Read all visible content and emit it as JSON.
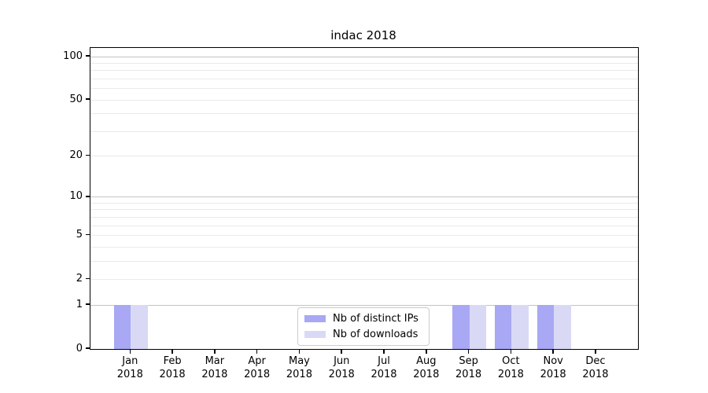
{
  "title": "indac 2018",
  "legend": {
    "items": [
      {
        "label": "Nb of distinct IPs",
        "color": "#a8a8f5"
      },
      {
        "label": "Nb of downloads",
        "color": "#d9d9f6"
      }
    ]
  },
  "chart_data": {
    "type": "bar",
    "title": "indac 2018",
    "categories": [
      "Jan 2018",
      "Feb 2018",
      "Mar 2018",
      "Apr 2018",
      "May 2018",
      "Jun 2018",
      "Jul 2018",
      "Aug 2018",
      "Sep 2018",
      "Oct 2018",
      "Nov 2018",
      "Dec 2018"
    ],
    "series": [
      {
        "name": "Nb of distinct IPs",
        "color": "#a8a8f5",
        "values": [
          1,
          0,
          0,
          0,
          0,
          0,
          0,
          0,
          1,
          1,
          1,
          0
        ]
      },
      {
        "name": "Nb of downloads",
        "color": "#d9d9f6",
        "values": [
          1,
          0,
          0,
          0,
          0,
          0,
          0,
          0,
          1,
          1,
          1,
          0
        ]
      }
    ],
    "xlabel": "",
    "ylabel": "",
    "yscale": "log1p",
    "ylim": [
      0,
      115
    ],
    "ytick_values": [
      0,
      1,
      2,
      5,
      10,
      20,
      50,
      100
    ],
    "ytick_labels": [
      "0",
      "1",
      "2",
      "5",
      "10",
      "20",
      "50",
      "100"
    ],
    "grid": {
      "major_values": [
        1,
        10,
        100
      ],
      "minor_values": [
        2,
        3,
        4,
        5,
        6,
        7,
        8,
        9,
        20,
        30,
        40,
        50,
        60,
        70,
        80,
        90
      ],
      "major_color": "#c4c4c4",
      "minor_color": "#eaeaea"
    },
    "legend_position": "lower center",
    "background": "#ffffff"
  }
}
